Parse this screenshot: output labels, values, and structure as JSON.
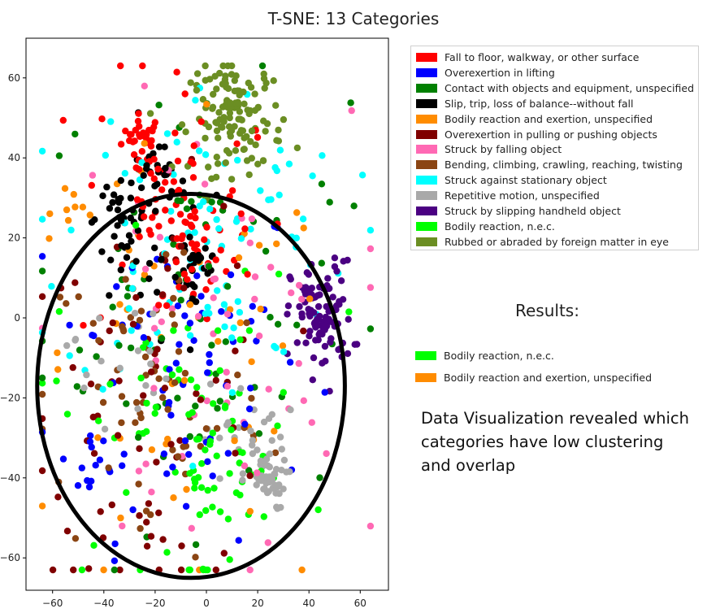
{
  "chart_data": {
    "type": "scatter",
    "title": "T-SNE: 13 Categories",
    "xlabel": "",
    "ylabel": "",
    "xlim": [
      -70,
      70
    ],
    "ylim": [
      -68,
      68
    ],
    "xticks": [
      -60,
      -40,
      -20,
      0,
      20,
      40,
      60
    ],
    "yticks": [
      60,
      40,
      20,
      0,
      -20,
      -40,
      -60
    ],
    "legend_position": "outside-right",
    "series": [
      {
        "name": "Fall to floor, walkway, or other surface",
        "color": "#ff0000",
        "clusters": [
          [
            -25,
            45,
            4,
            3,
            28
          ],
          [
            -15,
            30,
            6,
            6,
            30
          ],
          [
            -5,
            15,
            6,
            6,
            25
          ],
          [
            -10,
            28,
            20,
            20,
            40
          ]
        ]
      },
      {
        "name": "Overexertion in lifting",
        "color": "#0000ff",
        "clusters": [
          [
            -10,
            -10,
            25,
            22,
            70
          ],
          [
            -45,
            -40,
            6,
            4,
            12
          ]
        ]
      },
      {
        "name": "Contact with objects and equipment, unspecified",
        "color": "#008000",
        "clusters": [
          [
            -5,
            5,
            30,
            28,
            80
          ]
        ]
      },
      {
        "name": "Slip, trip, loss of balance--without fall",
        "color": "#000000",
        "clusters": [
          [
            -35,
            25,
            6,
            4,
            25
          ],
          [
            -20,
            33,
            6,
            5,
            30
          ],
          [
            -5,
            15,
            6,
            6,
            25
          ],
          [
            -20,
            12,
            15,
            12,
            25
          ]
        ]
      },
      {
        "name": "Bodily reaction and exertion, unspecified",
        "color": "#ff8c00",
        "clusters": [
          [
            -10,
            -20,
            32,
            30,
            50
          ],
          [
            -50,
            30,
            5,
            4,
            8
          ]
        ]
      },
      {
        "name": "Overexertion in pulling or pushing objects",
        "color": "#800000",
        "clusters": [
          [
            -20,
            -20,
            24,
            25,
            75
          ]
        ]
      },
      {
        "name": "Struck by falling object",
        "color": "#ff69b4",
        "clusters": [
          [
            0,
            -5,
            28,
            28,
            60
          ]
        ]
      },
      {
        "name": "Bending, climbing, crawling, reaching, twisting",
        "color": "#8b4513",
        "clusters": [
          [
            -20,
            -20,
            22,
            22,
            70
          ]
        ]
      },
      {
        "name": "Struck against stationary object",
        "color": "#00ffff",
        "clusters": [
          [
            0,
            20,
            28,
            20,
            90
          ]
        ]
      },
      {
        "name": "Repetitive motion, unspecified",
        "color": "#a9a9a9",
        "clusters": [
          [
            23,
            -40,
            4,
            4,
            45
          ],
          [
            15,
            -30,
            8,
            7,
            25
          ],
          [
            -35,
            -10,
            10,
            8,
            20
          ]
        ]
      },
      {
        "name": "Struck by slipping handheld object",
        "color": "#4b0082",
        "clusters": [
          [
            45,
            0,
            6,
            7,
            100
          ]
        ]
      },
      {
        "name": "Bodily reaction, n.e.c.",
        "color": "#00ff00",
        "clusters": [
          [
            -10,
            -25,
            25,
            22,
            65
          ],
          [
            5,
            -38,
            10,
            10,
            30
          ]
        ]
      },
      {
        "name": "Rubbed or abraded by foreign matter in eye",
        "color": "#6b8e23",
        "clusters": [
          [
            12,
            50,
            9,
            7,
            130
          ]
        ]
      }
    ],
    "cluster_format": [
      "center_x",
      "center_y",
      "spread_x",
      "spread_y",
      "count"
    ],
    "annotation_ellipse": {
      "center": [
        -6,
        -17
      ],
      "radius_x": 60,
      "radius_y": 48,
      "color": "#000000"
    }
  },
  "results": {
    "title": "Results:",
    "items": [
      {
        "label": "Bodily reaction, n.e.c.",
        "color": "#00ff00"
      },
      {
        "label": "Bodily reaction and exertion, unspecified",
        "color": "#ff8c00"
      }
    ]
  },
  "note": "Data Visualization revealed which categories have low clustering and overlap"
}
